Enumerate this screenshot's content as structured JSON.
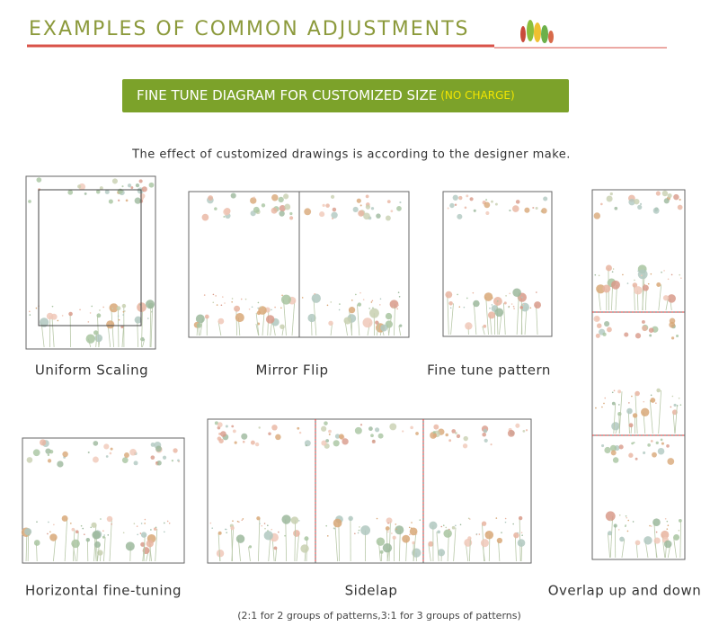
{
  "header": {
    "title": "EXAMPLES OF COMMON ADJUSTMENTS"
  },
  "banner": {
    "text": "FINE TUNE DIAGRAM FOR CUSTOMIZED SIZE",
    "note": "(NO CHARGE)"
  },
  "subtitle": "The effect of customized drawings is according to the designer make.",
  "examples": [
    {
      "label": "Uniform Scaling"
    },
    {
      "label": "Mirror Flip"
    },
    {
      "label": "Fine tune pattern"
    },
    {
      "label": "Horizontal fine-tuning"
    },
    {
      "label": "Sidelap"
    },
    {
      "label": "Overlap up and down"
    }
  ],
  "footnote": "(2:1 for 2 groups of patterns,3:1 for 3 groups of patterns)"
}
